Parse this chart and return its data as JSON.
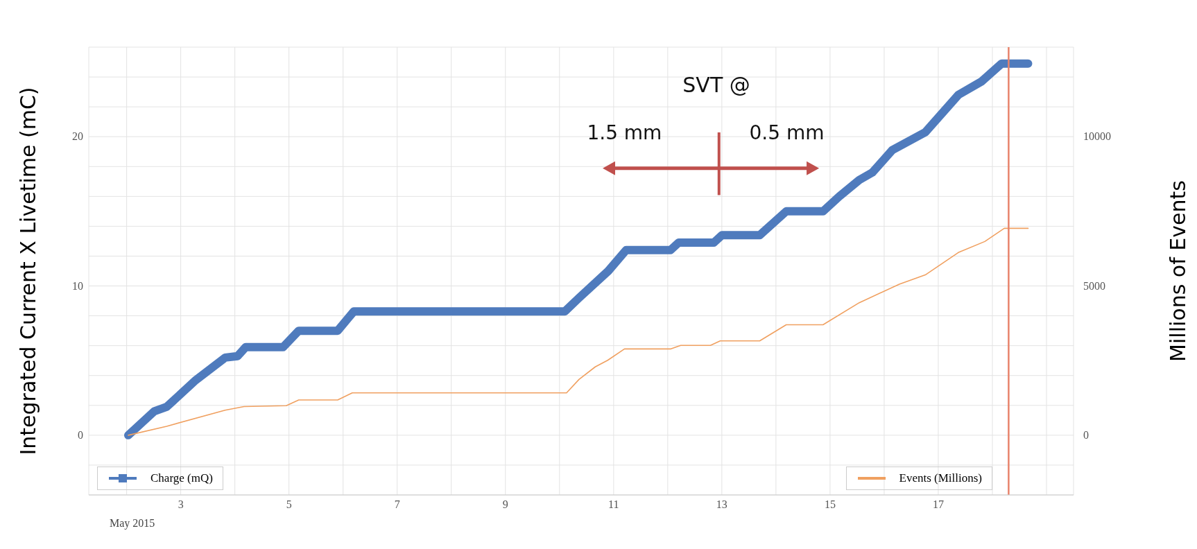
{
  "chart_data": {
    "type": "line",
    "xlabel": null,
    "ylabel": "Integrated Current X Livetime (mC)",
    "y2label": "Millions of Events",
    "series": [
      {
        "name": "Charge (mQ)",
        "color": "#4f7bbd",
        "x": [
          2.03,
          2.51,
          2.74,
          3.28,
          3.82,
          4.05,
          4.2,
          4.89,
          5.18,
          5.9,
          6.2,
          10.1,
          10.36,
          10.9,
          11.23,
          12.05,
          12.2,
          12.85,
          13.0,
          13.7,
          14.19,
          14.87,
          15.17,
          15.54,
          15.78,
          16.15,
          16.76,
          17.37,
          17.8,
          18.17,
          18.66
        ],
        "values": [
          0,
          1.6,
          1.9,
          3.7,
          5.2,
          5.3,
          5.9,
          5.9,
          7.0,
          7.0,
          8.3,
          8.3,
          9.2,
          11.0,
          12.4,
          12.4,
          12.9,
          12.9,
          13.4,
          13.4,
          15.0,
          15.0,
          16.0,
          17.1,
          17.6,
          19.1,
          20.3,
          22.8,
          23.7,
          24.9,
          24.9
        ]
      },
      {
        "name": "Events (Millions)",
        "color": "#f0a060",
        "axis": "y2",
        "x": [
          2.03,
          2.74,
          3.82,
          4.17,
          4.95,
          5.18,
          5.9,
          6.17,
          10.13,
          10.36,
          10.66,
          10.89,
          11.2,
          12.05,
          12.24,
          12.79,
          12.97,
          13.7,
          14.19,
          14.87,
          15.54,
          16.28,
          16.76,
          17.37,
          17.86,
          18.22,
          18.66
        ],
        "values": [
          0,
          300,
          840,
          960,
          990,
          1180,
          1180,
          1420,
          1420,
          1870,
          2290,
          2510,
          2890,
          2890,
          3010,
          3010,
          3160,
          3160,
          3700,
          3700,
          4440,
          5060,
          5370,
          6120,
          6490,
          6930,
          6930
        ]
      }
    ],
    "xlim": [
      1.3,
      19.5
    ],
    "xticks": [
      {
        "value": 2,
        "label": null
      },
      3,
      {
        "value": 4,
        "label": null
      },
      5,
      {
        "value": 6,
        "label": null
      },
      7,
      {
        "value": 8,
        "label": null
      },
      9,
      {
        "value": 10,
        "label": null
      },
      11,
      {
        "value": 12,
        "label": null
      },
      13,
      {
        "value": 14,
        "label": null
      },
      15,
      {
        "value": 16,
        "label": null
      },
      17,
      {
        "value": 18,
        "label": null
      },
      {
        "value": 19,
        "label": null
      }
    ],
    "ylim": [
      -4,
      26
    ],
    "yticks": [
      {
        "value": -2,
        "label": null
      },
      0,
      {
        "value": 2,
        "label": null
      },
      {
        "value": 4,
        "label": null
      },
      {
        "value": 6,
        "label": null
      },
      {
        "value": 8,
        "label": null
      },
      10,
      {
        "value": 12,
        "label": null
      },
      {
        "value": 14,
        "label": null
      },
      {
        "value": 16,
        "label": null
      },
      {
        "value": 18,
        "label": null
      },
      20,
      {
        "value": 22,
        "label": null
      },
      {
        "value": 24,
        "label": null
      }
    ],
    "y2lim": [
      -2000,
      13000
    ],
    "y2ticks": [
      0,
      5000,
      10000
    ],
    "ref_lines": [
      {
        "axis": "x",
        "value": 18.3,
        "color": "#e8836b"
      }
    ],
    "annotations": [
      "SVT @",
      "1.5 mm",
      "0.5 mm",
      "May 2015"
    ],
    "grid": true,
    "legend": "bottom",
    "marker": "none",
    "line_style": "solid"
  }
}
